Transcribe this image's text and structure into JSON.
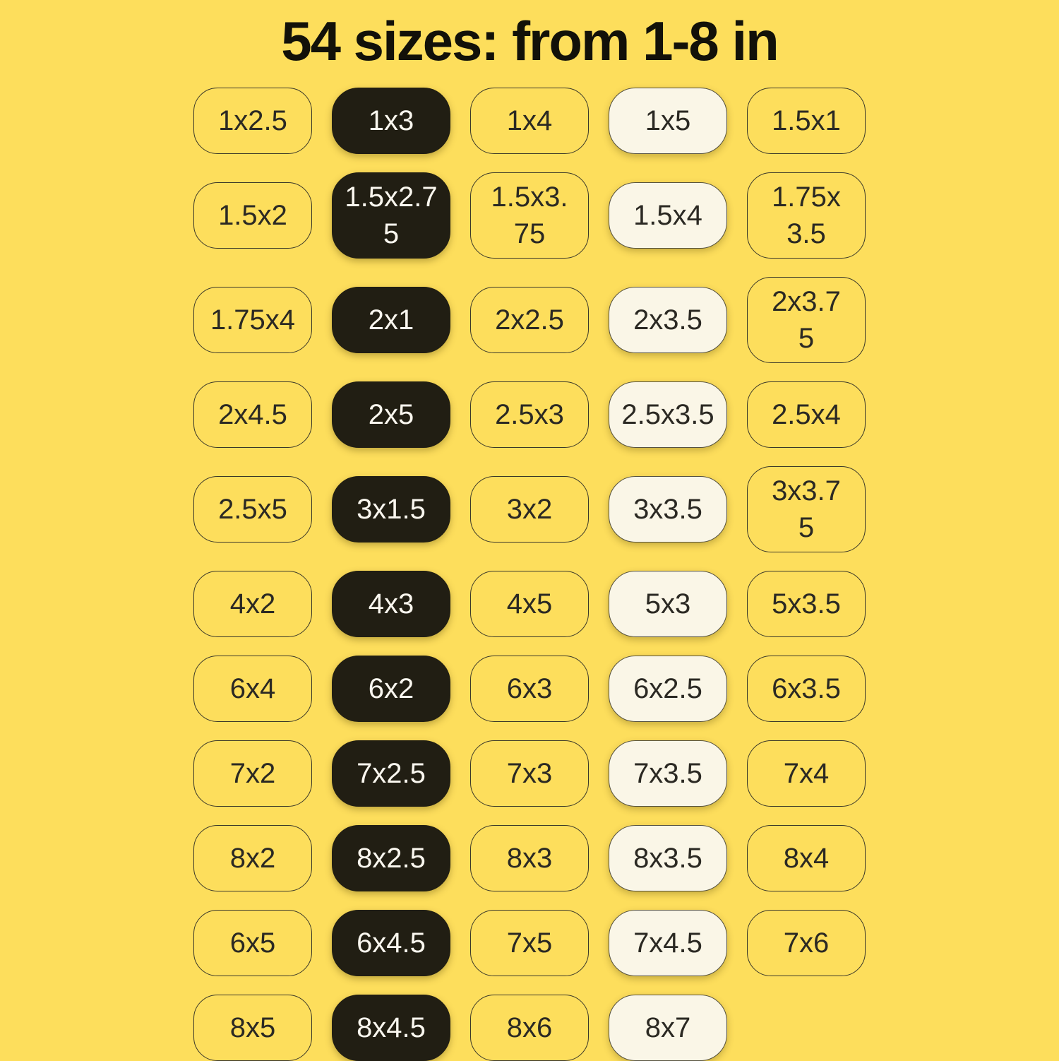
{
  "title": "54 sizes: from 1-8 in",
  "colors": {
    "background": "#FDDE5C",
    "title_text": "#121109",
    "outline_border": "#3A3729",
    "pill_text_dark": "#2B2923",
    "black_pill_fill": "#211E13",
    "black_pill_text": "#FAF7EF",
    "cream_pill_fill": "#FAF6E7",
    "cream_pill_border": "#55513F"
  },
  "grid": {
    "rows": [
      {
        "cells": [
          {
            "label": "1x2.5",
            "variant": "outline"
          },
          {
            "label": "1x3",
            "variant": "black"
          },
          {
            "label": "1x4",
            "variant": "outline"
          },
          {
            "label": "1x5",
            "variant": "cream"
          },
          {
            "label": "1.5x1",
            "variant": "outline"
          }
        ]
      },
      {
        "cells": [
          {
            "label": "1.5x2",
            "variant": "outline"
          },
          {
            "label": "1.5x2.7\n5",
            "variant": "black"
          },
          {
            "label": "1.5x3.\n75",
            "variant": "outline"
          },
          {
            "label": "1.5x4",
            "variant": "cream"
          },
          {
            "label": "1.75x\n3.5",
            "variant": "outline"
          }
        ]
      },
      {
        "cells": [
          {
            "label": "1.75x4",
            "variant": "outline"
          },
          {
            "label": "2x1",
            "variant": "black"
          },
          {
            "label": "2x2.5",
            "variant": "outline"
          },
          {
            "label": "2x3.5",
            "variant": "cream"
          },
          {
            "label": "2x3.7\n5",
            "variant": "outline"
          }
        ]
      },
      {
        "cells": [
          {
            "label": "2x4.5",
            "variant": "outline"
          },
          {
            "label": "2x5",
            "variant": "black"
          },
          {
            "label": "2.5x3",
            "variant": "outline"
          },
          {
            "label": "2.5x3.5",
            "variant": "cream"
          },
          {
            "label": "2.5x4",
            "variant": "outline"
          }
        ]
      },
      {
        "cells": [
          {
            "label": "2.5x5",
            "variant": "outline"
          },
          {
            "label": "3x1.5",
            "variant": "black"
          },
          {
            "label": "3x2",
            "variant": "outline"
          },
          {
            "label": "3x3.5",
            "variant": "cream"
          },
          {
            "label": "3x3.7\n5",
            "variant": "outline"
          }
        ]
      },
      {
        "cells": [
          {
            "label": "4x2",
            "variant": "outline"
          },
          {
            "label": "4x3",
            "variant": "black"
          },
          {
            "label": "4x5",
            "variant": "outline"
          },
          {
            "label": "5x3",
            "variant": "cream"
          },
          {
            "label": "5x3.5",
            "variant": "outline"
          }
        ]
      },
      {
        "cells": [
          {
            "label": "6x4",
            "variant": "outline"
          },
          {
            "label": "6x2",
            "variant": "black"
          },
          {
            "label": "6x3",
            "variant": "outline"
          },
          {
            "label": "6x2.5",
            "variant": "cream"
          },
          {
            "label": "6x3.5",
            "variant": "outline"
          }
        ]
      },
      {
        "cells": [
          {
            "label": "7x2",
            "variant": "outline"
          },
          {
            "label": "7x2.5",
            "variant": "black"
          },
          {
            "label": "7x3",
            "variant": "outline"
          },
          {
            "label": "7x3.5",
            "variant": "cream"
          },
          {
            "label": "7x4",
            "variant": "outline"
          }
        ]
      },
      {
        "cells": [
          {
            "label": "8x2",
            "variant": "outline"
          },
          {
            "label": "8x2.5",
            "variant": "black"
          },
          {
            "label": "8x3",
            "variant": "outline"
          },
          {
            "label": "8x3.5",
            "variant": "cream"
          },
          {
            "label": "8x4",
            "variant": "outline"
          }
        ]
      },
      {
        "cells": [
          {
            "label": "6x5",
            "variant": "outline"
          },
          {
            "label": "6x4.5",
            "variant": "black"
          },
          {
            "label": "7x5",
            "variant": "outline"
          },
          {
            "label": "7x4.5",
            "variant": "cream"
          },
          {
            "label": "7x6",
            "variant": "outline"
          }
        ]
      },
      {
        "cells": [
          {
            "label": "8x5",
            "variant": "outline"
          },
          {
            "label": "8x4.5",
            "variant": "black"
          },
          {
            "label": "8x6",
            "variant": "outline"
          },
          {
            "label": "8x7",
            "variant": "cream"
          },
          {
            "label": "",
            "variant": "empty"
          }
        ]
      }
    ]
  }
}
